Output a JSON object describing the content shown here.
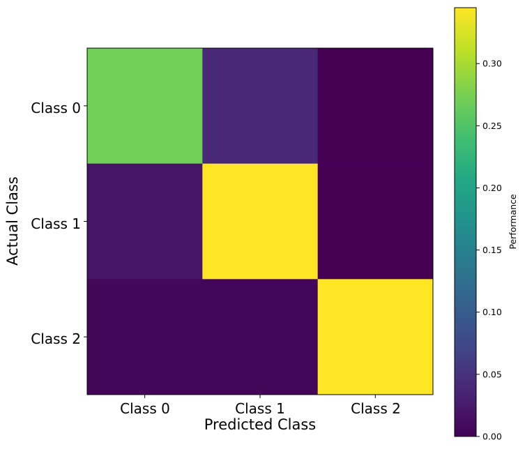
{
  "chart_data": {
    "type": "heatmap",
    "title": "",
    "xlabel": "Predicted Class",
    "ylabel": "Actual Class",
    "x_categories": [
      "Class 0",
      "Class 1",
      "Class 2"
    ],
    "y_categories": [
      "Class 0",
      "Class 1",
      "Class 2"
    ],
    "matrix": [
      [
        0.27,
        0.04,
        0.0
      ],
      [
        0.02,
        0.345,
        0.0
      ],
      [
        0.005,
        0.005,
        0.345
      ]
    ],
    "colormap": "viridis",
    "colorbar": {
      "label": "Performance",
      "range": [
        0.0,
        0.345
      ],
      "ticks": [
        0.0,
        0.05,
        0.1,
        0.15,
        0.2,
        0.25,
        0.3
      ],
      "tick_labels": [
        "0.00",
        "0.05",
        "0.10",
        "0.15",
        "0.20",
        "0.25",
        "0.30"
      ],
      "placement": "right"
    },
    "grid": false
  }
}
